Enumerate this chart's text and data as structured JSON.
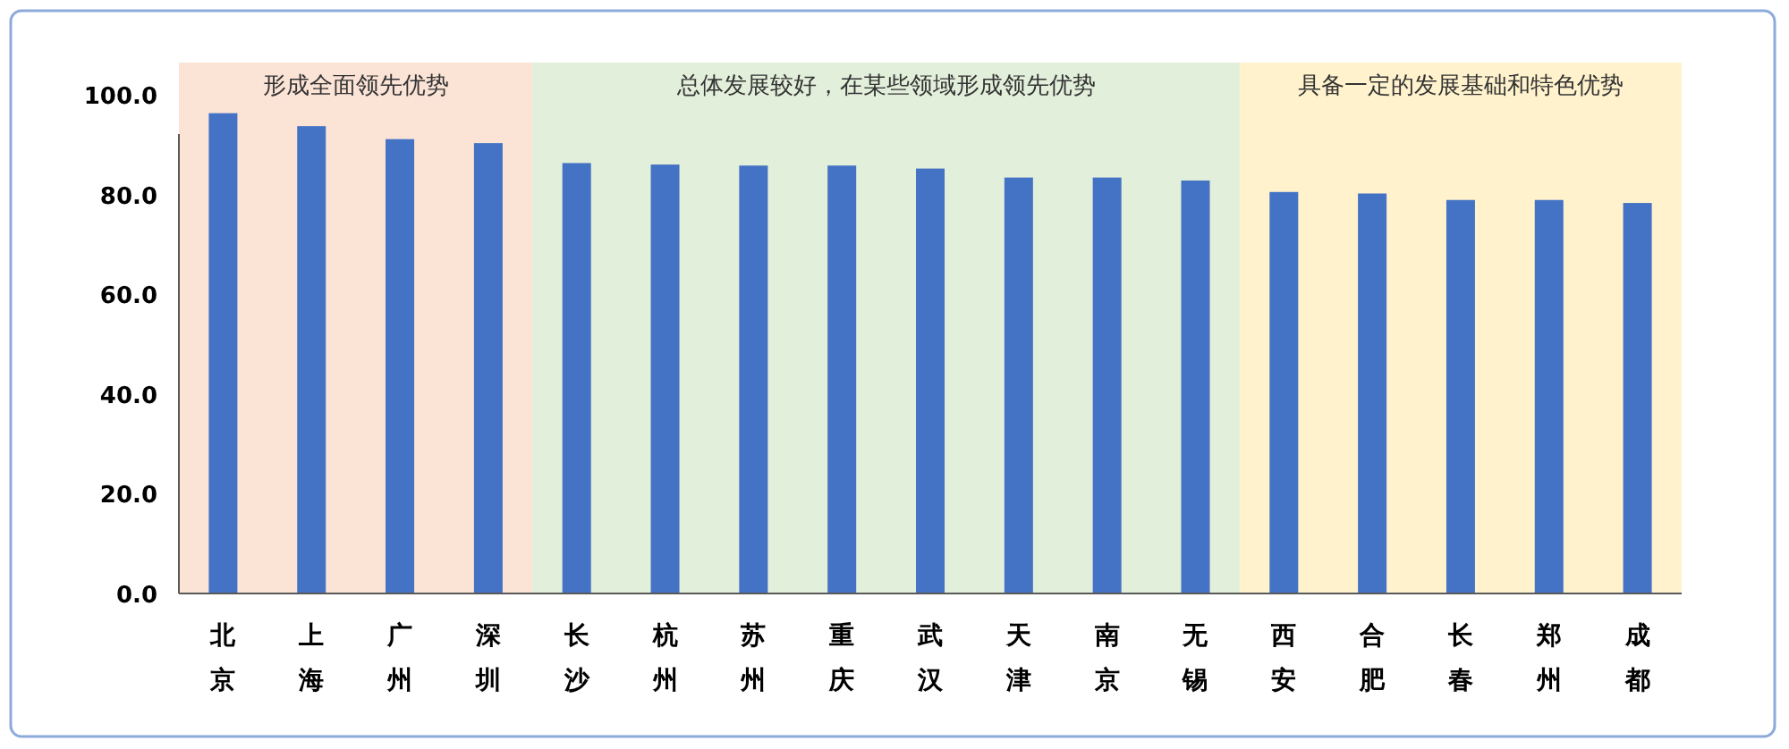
{
  "chart_data": {
    "type": "bar",
    "categories": [
      "北京",
      "上海",
      "广州",
      "深圳",
      "长沙",
      "杭州",
      "苏州",
      "重庆",
      "武汉",
      "天津",
      "南京",
      "无锡",
      "西安",
      "合肥",
      "长春",
      "郑州",
      "成都"
    ],
    "values": [
      96.3,
      93.7,
      91.1,
      90.3,
      86.3,
      86.0,
      85.8,
      85.8,
      85.2,
      83.4,
      83.4,
      82.8,
      80.5,
      80.2,
      78.9,
      78.9,
      78.3
    ],
    "color": "#4472c4",
    "ylim": [
      0,
      100
    ],
    "yticks": [
      {
        "value": 0,
        "label": "0.0"
      },
      {
        "value": 20,
        "label": "20.0"
      },
      {
        "value": 40,
        "label": "40.0"
      },
      {
        "value": 60,
        "label": "60.0"
      },
      {
        "value": 80,
        "label": "80.0"
      },
      {
        "value": 100,
        "label": "100.0"
      }
    ],
    "bands": [
      {
        "axis": "x",
        "from": "北京",
        "to": "深圳",
        "label": "形成全面领先优势",
        "color": "#fbe3d6"
      },
      {
        "axis": "x",
        "from": "长沙",
        "to": "无锡",
        "label": "总体发展较好，在某些领域形成领先优势",
        "color": "#e2efda"
      },
      {
        "axis": "x",
        "from": "西安",
        "to": "成都",
        "label": "具备一定的发展基础和特色优势",
        "color": "#fff2cc"
      }
    ]
  }
}
